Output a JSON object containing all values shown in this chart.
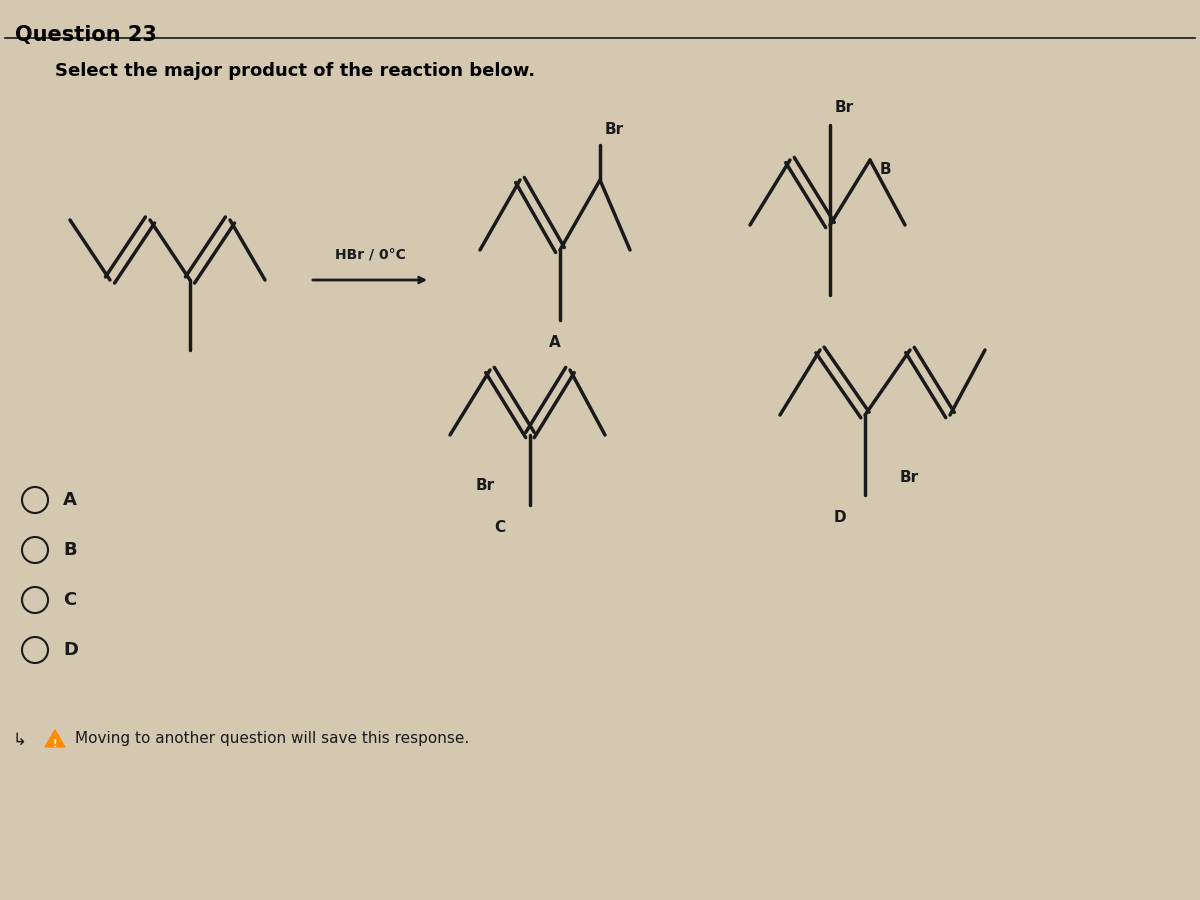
{
  "title": "Question 23",
  "subtitle": "Select the major product of the reaction below.",
  "reagent": "HBr / 0°C",
  "background_color": "#d4c8b0",
  "text_color": "#000000",
  "options": [
    "A",
    "B",
    "C",
    "D"
  ],
  "answer_options": [
    "A",
    "B",
    "C",
    "D"
  ],
  "warning_text": "Moving to another question will save this response.",
  "line_color": "#1a1a1a",
  "line_width": 2.5
}
